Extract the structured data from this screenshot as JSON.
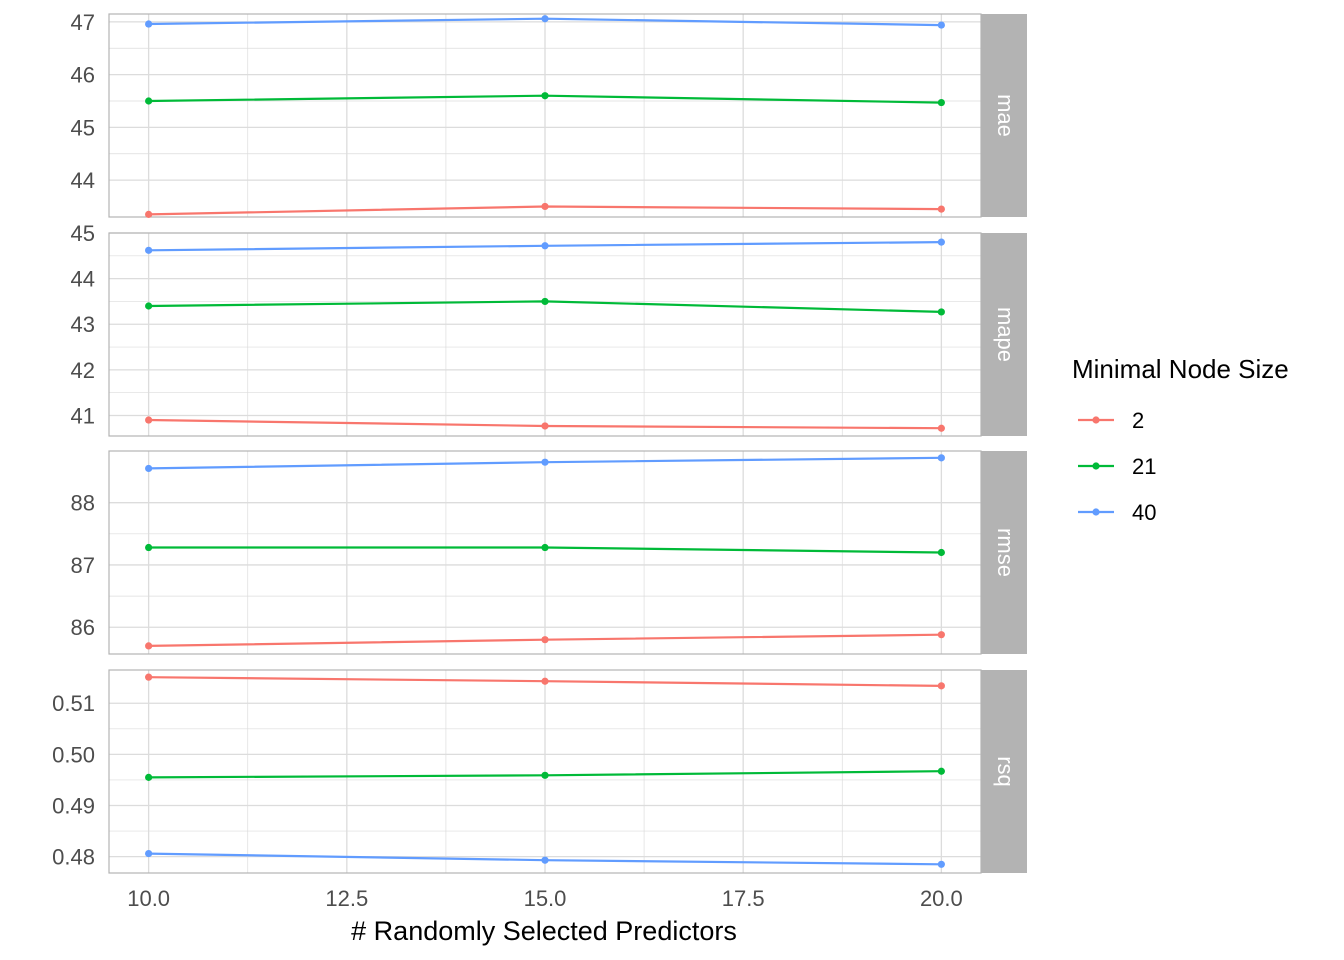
{
  "chart_data": {
    "type": "line",
    "xlabel": "# Randomly Selected Predictors",
    "x": [
      10,
      15,
      20
    ],
    "xlim": [
      9.5,
      20.5
    ],
    "x_ticks": [
      10,
      12.5,
      15,
      17.5,
      20
    ],
    "x_tick_labels": [
      "10.0",
      "12.5",
      "15.0",
      "17.5",
      "20.0"
    ],
    "grid": true,
    "facets": [
      {
        "label": "mae",
        "ylim": [
          43.3,
          47.15
        ],
        "y_ticks": [
          44,
          45,
          46,
          47
        ],
        "y_tick_labels": [
          "44",
          "45",
          "46",
          "47"
        ],
        "series": [
          {
            "name": "2",
            "values": [
              43.35,
              43.5,
              43.45
            ]
          },
          {
            "name": "21",
            "values": [
              45.5,
              45.6,
              45.47
            ]
          },
          {
            "name": "40",
            "values": [
              46.96,
              47.06,
              46.94
            ]
          }
        ]
      },
      {
        "label": "mape",
        "ylim": [
          40.55,
          45.0
        ],
        "y_ticks": [
          41,
          42,
          43,
          44,
          45
        ],
        "y_tick_labels": [
          "41",
          "42",
          "43",
          "44",
          "45"
        ],
        "series": [
          {
            "name": "2",
            "values": [
              40.9,
              40.77,
              40.72
            ]
          },
          {
            "name": "21",
            "values": [
              43.4,
              43.5,
              43.27
            ]
          },
          {
            "name": "40",
            "values": [
              44.62,
              44.72,
              44.8
            ]
          }
        ]
      },
      {
        "label": "rmse",
        "ylim": [
          85.57,
          88.83
        ],
        "y_ticks": [
          86,
          87,
          88
        ],
        "y_tick_labels": [
          "86",
          "87",
          "88"
        ],
        "series": [
          {
            "name": "2",
            "values": [
              85.7,
              85.8,
              85.88
            ]
          },
          {
            "name": "21",
            "values": [
              87.28,
              87.28,
              87.2
            ]
          },
          {
            "name": "40",
            "values": [
              88.55,
              88.65,
              88.72
            ]
          }
        ]
      },
      {
        "label": "rsq",
        "ylim": [
          0.4768,
          0.5165
        ],
        "y_ticks": [
          0.48,
          0.49,
          0.5,
          0.51
        ],
        "y_tick_labels": [
          "0.48",
          "0.49",
          "0.50",
          "0.51"
        ],
        "series": [
          {
            "name": "2",
            "values": [
              0.5151,
              0.5143,
              0.5134
            ]
          },
          {
            "name": "21",
            "values": [
              0.4955,
              0.4959,
              0.4967
            ]
          },
          {
            "name": "40",
            "values": [
              0.4806,
              0.4793,
              0.4785
            ]
          }
        ]
      }
    ],
    "legend": {
      "title": "Minimal Node Size",
      "position": "right",
      "entries": [
        {
          "name": "2",
          "label": " 2",
          "color": "#F8766D"
        },
        {
          "name": "21",
          "label": "21",
          "color": "#00BA38"
        },
        {
          "name": "40",
          "label": "40",
          "color": "#619CFF"
        }
      ]
    },
    "colors": {
      "2": "#F8766D",
      "21": "#00BA38",
      "40": "#619CFF",
      "strip": "#B3B3B3",
      "strip_text": "#FFFFFF",
      "grid": "#DCDCDC",
      "axis_text": "#4D4D4D"
    }
  }
}
